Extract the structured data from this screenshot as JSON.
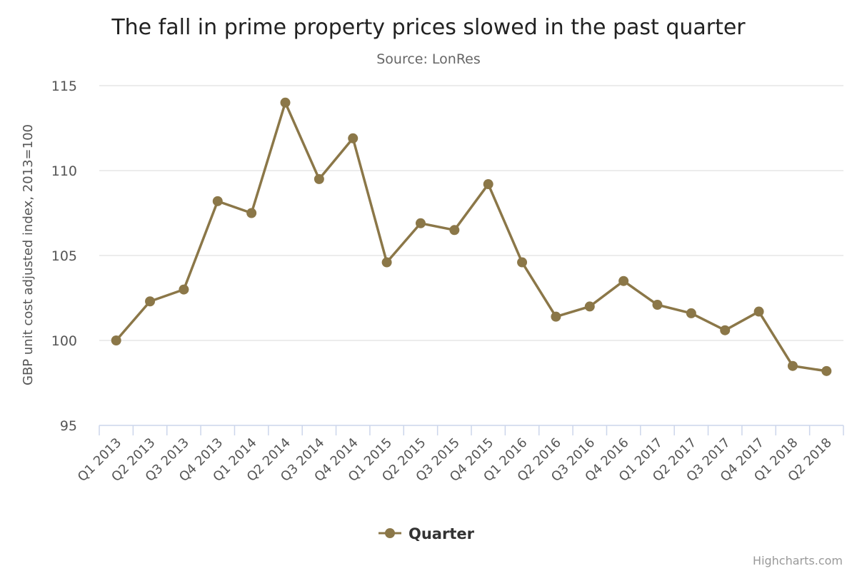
{
  "chart_data": {
    "type": "line",
    "title": "The fall in prime property prices slowed in the past quarter",
    "subtitle": "Source: LonRes",
    "xlabel": "",
    "ylabel": "GBP unit cost adjusted index, 2013=100",
    "ylim": [
      95,
      115
    ],
    "yticks": [
      "95",
      "100",
      "105",
      "110",
      "115"
    ],
    "grid": true,
    "legend_position": "bottom",
    "categories": [
      "Q1 2013",
      "Q2 2013",
      "Q3 2013",
      "Q4 2013",
      "Q1 2014",
      "Q2 2014",
      "Q3 2014",
      "Q4 2014",
      "Q1 2015",
      "Q2 2015",
      "Q3 2015",
      "Q4 2015",
      "Q1 2016",
      "Q2 2016",
      "Q3 2016",
      "Q4 2016",
      "Q1 2017",
      "Q2 2017",
      "Q3 2017",
      "Q4 2017",
      "Q1 2018",
      "Q2 2018"
    ],
    "series": [
      {
        "name": "Quarter",
        "color": "#8b7748",
        "values": [
          100.0,
          102.3,
          103.0,
          108.2,
          107.5,
          114.0,
          109.5,
          111.9,
          104.6,
          106.9,
          106.5,
          109.2,
          104.6,
          101.4,
          102.0,
          103.5,
          102.1,
          101.6,
          100.6,
          101.7,
          98.5,
          98.2
        ]
      }
    ]
  },
  "credits": "Highcharts.com"
}
